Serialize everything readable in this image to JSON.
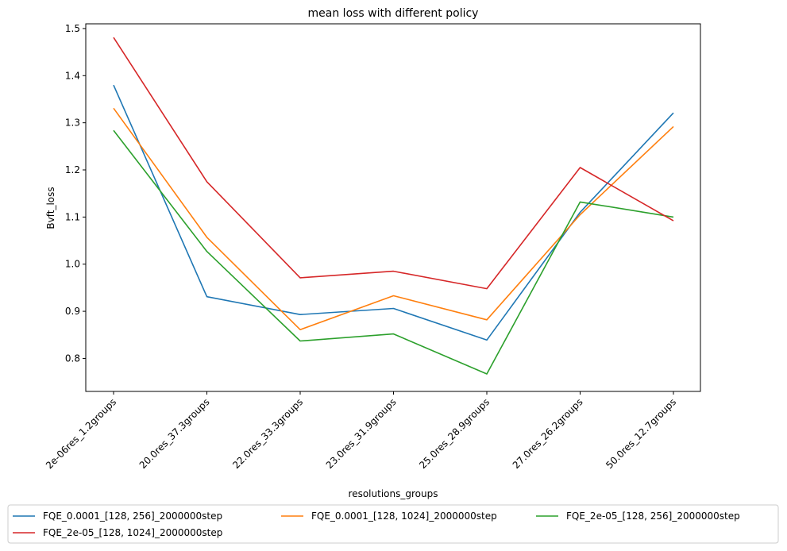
{
  "chart_data": {
    "type": "line",
    "title": "mean loss with different policy",
    "xlabel": "resolutions_groups",
    "ylabel": "Bvft_loss",
    "categories": [
      "2e-06res_1.2groups",
      "20.0res_37.3groups",
      "22.0res_33.3groups",
      "23.0res_31.9groups",
      "25.0res_28.9groups",
      "27.0res_26.2groups",
      "50.0res_12.7groups"
    ],
    "ylim": [
      0.73,
      1.51
    ],
    "yticks": [
      "0.8",
      "0.9",
      "1.0",
      "1.1",
      "1.2",
      "1.3",
      "1.4",
      "1.5"
    ],
    "grid": false,
    "legend_position": "bottom",
    "series": [
      {
        "name": "FQE_0.0001_[128, 256]_2000000step",
        "color": "#1f77b4",
        "values": [
          1.38,
          0.931,
          0.893,
          0.906,
          0.839,
          1.11,
          1.321
        ]
      },
      {
        "name": "FQE_0.0001_[128, 1024]_2000000step",
        "color": "#ff7f0e",
        "values": [
          1.331,
          1.057,
          0.861,
          0.933,
          0.882,
          1.105,
          1.292
        ]
      },
      {
        "name": "FQE_2e-05_[128, 256]_2000000step",
        "color": "#2ca02c",
        "values": [
          1.284,
          1.027,
          0.837,
          0.852,
          0.767,
          1.132,
          1.1
        ]
      },
      {
        "name": "FQE_2e-05_[128, 1024]_2000000step",
        "color": "#d62728",
        "values": [
          1.481,
          1.175,
          0.971,
          0.985,
          0.948,
          1.205,
          1.092
        ]
      }
    ]
  }
}
